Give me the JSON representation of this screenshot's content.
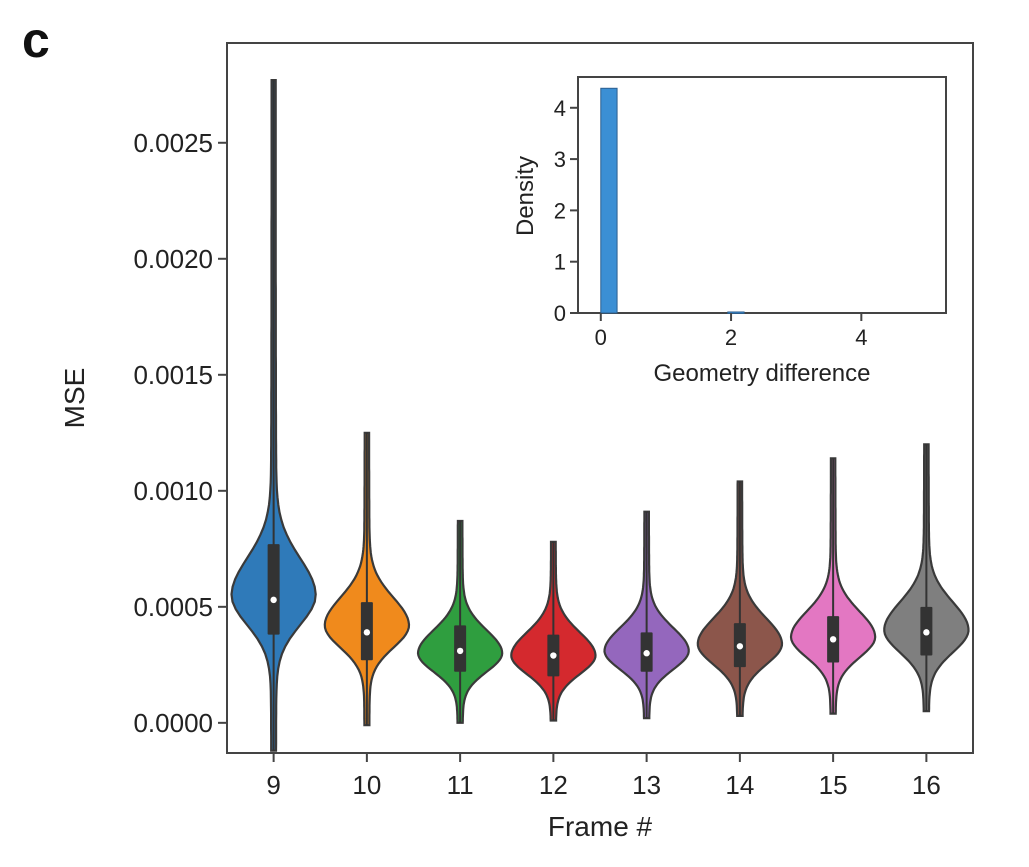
{
  "panel_label": "c",
  "chart_data": [
    {
      "type": "violin",
      "title": "",
      "xlabel": "Frame #",
      "ylabel": "MSE",
      "ylim": [
        -0.00013,
        0.00293
      ],
      "yticks": [
        "0.0000",
        "0.0005",
        "0.0010",
        "0.0015",
        "0.0020",
        "0.0025"
      ],
      "ytick_values": [
        0,
        0.0005,
        0.001,
        0.0015,
        0.002,
        0.0025
      ],
      "categories": [
        "9",
        "10",
        "11",
        "12",
        "13",
        "14",
        "15",
        "16"
      ],
      "colors": [
        "#2f7ab9",
        "#f08a1c",
        "#2f9e3f",
        "#d4292e",
        "#9467bd",
        "#8c564b",
        "#e377c2",
        "#7f7f7f"
      ],
      "series": [
        {
          "name": "9",
          "min": -0.00012,
          "max": 0.00277,
          "q1": 0.00038,
          "median": 0.00053,
          "q3": 0.00077,
          "mode": 0.00055,
          "spread": 0.00016
        },
        {
          "name": "10",
          "min": -1e-05,
          "max": 0.00125,
          "q1": 0.00027,
          "median": 0.00039,
          "q3": 0.00052,
          "mode": 0.00042,
          "spread": 0.00012
        },
        {
          "name": "11",
          "min": 0.0,
          "max": 0.00087,
          "q1": 0.00022,
          "median": 0.00031,
          "q3": 0.00042,
          "mode": 0.0003,
          "spread": 0.0001
        },
        {
          "name": "12",
          "min": 1e-05,
          "max": 0.00078,
          "q1": 0.0002,
          "median": 0.00029,
          "q3": 0.00038,
          "mode": 0.00029,
          "spread": 0.0001
        },
        {
          "name": "13",
          "min": 2e-05,
          "max": 0.00091,
          "q1": 0.00022,
          "median": 0.0003,
          "q3": 0.00039,
          "mode": 0.00031,
          "spread": 0.0001
        },
        {
          "name": "14",
          "min": 3e-05,
          "max": 0.00104,
          "q1": 0.00024,
          "median": 0.00033,
          "q3": 0.00043,
          "mode": 0.00034,
          "spread": 0.00011
        },
        {
          "name": "15",
          "min": 4e-05,
          "max": 0.00114,
          "q1": 0.00026,
          "median": 0.00036,
          "q3": 0.00046,
          "mode": 0.00037,
          "spread": 0.00011
        },
        {
          "name": "16",
          "min": 5e-05,
          "max": 0.0012,
          "q1": 0.00029,
          "median": 0.00039,
          "q3": 0.0005,
          "mode": 0.0004,
          "spread": 0.00012
        }
      ]
    },
    {
      "type": "bar",
      "subtype": "histogram-inset",
      "xlabel": "Geometry difference",
      "ylabel": "Density",
      "xlim": [
        -0.35,
        5.3
      ],
      "ylim": [
        0,
        4.6
      ],
      "xticks": [
        "0",
        "2",
        "4"
      ],
      "xtick_values": [
        0,
        2,
        4
      ],
      "yticks": [
        "0",
        "1",
        "2",
        "3",
        "4"
      ],
      "ytick_values": [
        0,
        1,
        2,
        3,
        4
      ],
      "bar_color": "#3b8fd4",
      "bins": [
        {
          "x0": 0.0,
          "x1": 0.25,
          "value": 4.38
        },
        {
          "x0": 1.95,
          "x1": 2.2,
          "value": 0.02
        }
      ]
    }
  ]
}
